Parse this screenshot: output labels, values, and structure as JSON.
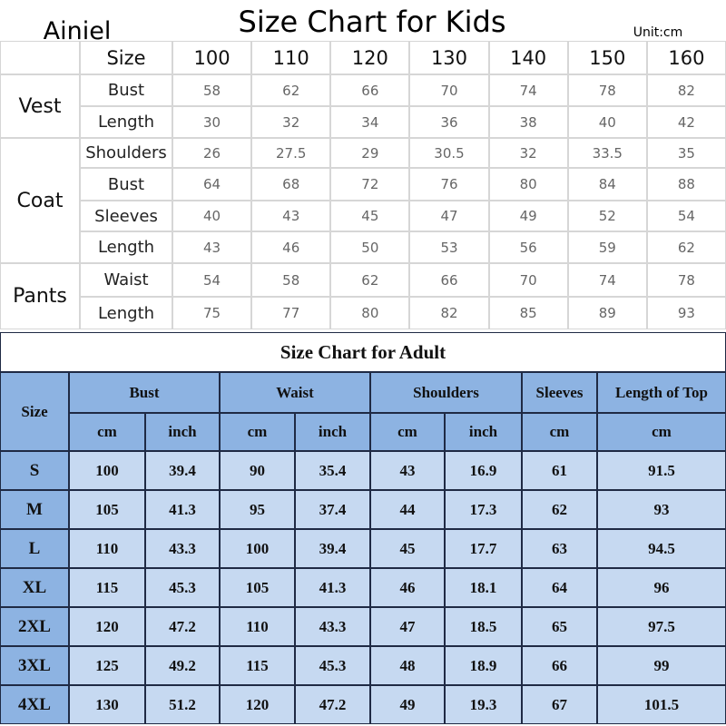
{
  "brand": "Ainiel",
  "kids": {
    "title": "Size Chart for Kids",
    "unit": "Unit:cm",
    "size_label": "Size",
    "sizes": [
      100,
      110,
      120,
      130,
      140,
      150,
      160
    ],
    "groups": [
      {
        "name": "Vest",
        "rows": [
          {
            "label": "Bust",
            "values": [
              58,
              62,
              66,
              70,
              74,
              78,
              82
            ]
          },
          {
            "label": "Length",
            "values": [
              30,
              32,
              34,
              36,
              38,
              40,
              42
            ]
          }
        ]
      },
      {
        "name": "Coat",
        "rows": [
          {
            "label": "Shoulders",
            "values": [
              26,
              27.5,
              29,
              30.5,
              32,
              33.5,
              35
            ]
          },
          {
            "label": "Bust",
            "values": [
              64,
              68,
              72,
              76,
              80,
              84,
              88
            ]
          },
          {
            "label": "Sleeves",
            "values": [
              40,
              43,
              45,
              47,
              49,
              52,
              54
            ]
          },
          {
            "label": "Length",
            "values": [
              43,
              46,
              50,
              53,
              56,
              59,
              62
            ]
          }
        ]
      },
      {
        "name": "Pants",
        "rows": [
          {
            "label": "Waist",
            "values": [
              54,
              58,
              62,
              66,
              70,
              74,
              78
            ]
          },
          {
            "label": "Length",
            "values": [
              75,
              77,
              80,
              82,
              85,
              89,
              93
            ]
          }
        ]
      }
    ]
  },
  "adult": {
    "title": "Size Chart for Adult",
    "size_label": "Size",
    "columns": [
      {
        "name": "Bust",
        "units": [
          "cm",
          "inch"
        ]
      },
      {
        "name": "Waist",
        "units": [
          "cm",
          "inch"
        ]
      },
      {
        "name": "Shoulders",
        "units": [
          "cm",
          "inch"
        ]
      },
      {
        "name": "Sleeves",
        "units": [
          "cm"
        ]
      },
      {
        "name": "Length of Top",
        "units": [
          "cm"
        ]
      }
    ],
    "rows": [
      {
        "size": "S",
        "values": [
          100,
          39.4,
          90,
          35.4,
          43,
          16.9,
          61,
          91.5
        ]
      },
      {
        "size": "M",
        "values": [
          105,
          41.3,
          95,
          37.4,
          44,
          17.3,
          62,
          93
        ]
      },
      {
        "size": "L",
        "values": [
          110,
          43.3,
          100,
          39.4,
          45,
          17.7,
          63,
          94.5
        ]
      },
      {
        "size": "XL",
        "values": [
          115,
          45.3,
          105,
          41.3,
          46,
          18.1,
          64,
          96
        ]
      },
      {
        "size": "2XL",
        "values": [
          120,
          47.2,
          110,
          43.3,
          47,
          18.5,
          65,
          97.5
        ]
      },
      {
        "size": "3XL",
        "values": [
          125,
          49.2,
          115,
          45.3,
          48,
          18.9,
          66,
          99
        ]
      },
      {
        "size": "4XL",
        "values": [
          130,
          51.2,
          120,
          47.2,
          49,
          19.3,
          67,
          101.5
        ]
      }
    ]
  }
}
